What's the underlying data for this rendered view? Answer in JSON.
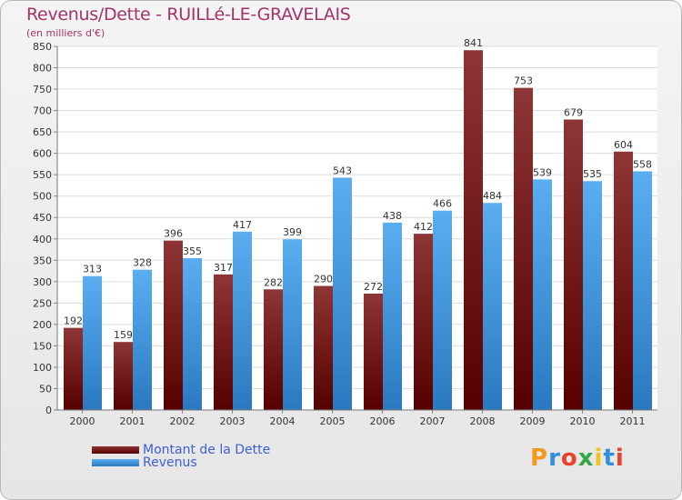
{
  "header": {
    "title": "Revenus/Dette - RUILLé-LE-GRAVELAIS",
    "subtitle": "(en milliers d'€)"
  },
  "colors": {
    "title": "#a3336b",
    "dette": "#6e1313",
    "revenus": "#3a8fd8",
    "legend_text": "#3d5fd1"
  },
  "chart_data": {
    "type": "bar",
    "categories": [
      "2000",
      "2001",
      "2002",
      "2003",
      "2004",
      "2005",
      "2006",
      "2007",
      "2008",
      "2009",
      "2010",
      "2011"
    ],
    "series": [
      {
        "name": "Montant de la Dette",
        "values": [
          192,
          159,
          396,
          317,
          282,
          290,
          272,
          412,
          841,
          753,
          679,
          604
        ]
      },
      {
        "name": "Revenus",
        "values": [
          313,
          328,
          355,
          417,
          399,
          543,
          438,
          466,
          484,
          539,
          535,
          558
        ]
      }
    ],
    "title": "Revenus/Dette - RUILLé-LE-GRAVELAIS",
    "ylabel": "(en milliers d'€)",
    "ylim": [
      0,
      850
    ],
    "yticks": [
      0,
      50,
      100,
      150,
      200,
      250,
      300,
      350,
      400,
      450,
      500,
      550,
      600,
      650,
      700,
      750,
      800,
      850
    ],
    "grid": true,
    "legend_position": "bottom-left"
  },
  "legend": {
    "items": [
      {
        "label": "Montant de la Dette"
      },
      {
        "label": "Revenus"
      }
    ]
  },
  "logo": {
    "text": "Proxiti"
  }
}
